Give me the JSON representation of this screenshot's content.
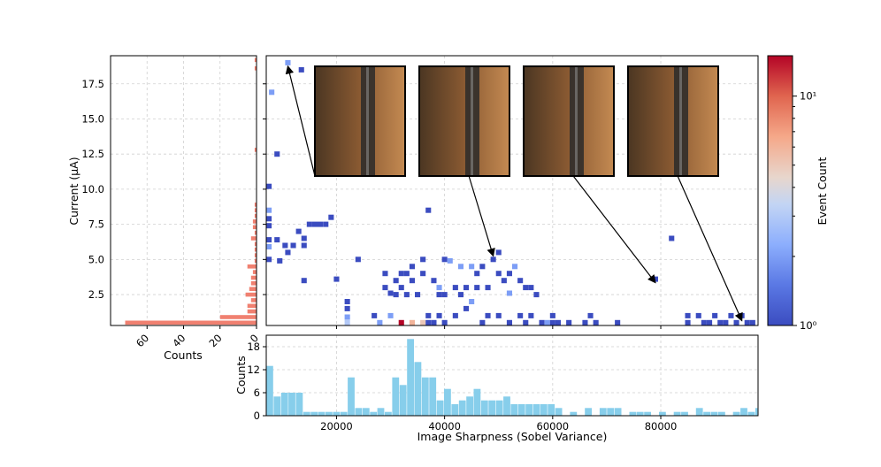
{
  "colors": {
    "heat_low": "#3b4cc0",
    "heat_mid": "#dddddd",
    "heat_high": "#b40426",
    "top_hist": "#87ceeb",
    "side_hist": "#f08070",
    "grid": "#d0d0d0"
  },
  "chart_data": [
    {
      "type": "heatmap",
      "name": "main-heatmap",
      "title": "",
      "xlabel": "",
      "ylabel": "Current (µA)",
      "x_range": [
        7000,
        98000
      ],
      "y_range": [
        0.3,
        19.5
      ],
      "y_ticks": [
        "2.5",
        "5.0",
        "7.5",
        "10.0",
        "12.5",
        "15.0",
        "17.5"
      ],
      "y_tick_values": [
        2.5,
        5.0,
        7.5,
        10.0,
        12.5,
        15.0,
        17.5
      ],
      "grid": true,
      "color_scale": "log",
      "cells": [
        [
          11000,
          19.0,
          2
        ],
        [
          13500,
          18.5,
          1
        ],
        [
          8000,
          16.9,
          2
        ],
        [
          9000,
          12.5,
          1
        ],
        [
          7500,
          10.2,
          1
        ],
        [
          7500,
          8.5,
          2
        ],
        [
          7500,
          7.9,
          1
        ],
        [
          7500,
          7.4,
          1
        ],
        [
          7500,
          6.4,
          1
        ],
        [
          7500,
          5.9,
          2
        ],
        [
          7500,
          5.0,
          1
        ],
        [
          9000,
          6.4,
          1
        ],
        [
          9500,
          4.9,
          1
        ],
        [
          10500,
          6.0,
          1
        ],
        [
          11000,
          5.5,
          1
        ],
        [
          12000,
          6.0,
          1
        ],
        [
          13000,
          7.0,
          1
        ],
        [
          14000,
          6.5,
          1
        ],
        [
          14000,
          6.0,
          1
        ],
        [
          14000,
          3.5,
          1
        ],
        [
          15000,
          7.5,
          1
        ],
        [
          16000,
          7.5,
          1
        ],
        [
          17000,
          7.5,
          1
        ],
        [
          18000,
          7.5,
          1
        ],
        [
          19000,
          8.0,
          1
        ],
        [
          20000,
          3.6,
          1
        ],
        [
          22000,
          2.0,
          1
        ],
        [
          22000,
          1.5,
          1
        ],
        [
          22000,
          0.9,
          2
        ],
        [
          22000,
          0.5,
          3
        ],
        [
          24000,
          5.0,
          1
        ],
        [
          27000,
          1.0,
          1
        ],
        [
          28000,
          0.5,
          2
        ],
        [
          29000,
          4.0,
          1
        ],
        [
          29000,
          3.0,
          1
        ],
        [
          30000,
          2.6,
          1
        ],
        [
          30000,
          1.0,
          2
        ],
        [
          31000,
          3.5,
          1
        ],
        [
          31000,
          2.5,
          1
        ],
        [
          32000,
          4.0,
          1
        ],
        [
          32000,
          3.0,
          1
        ],
        [
          32000,
          0.5,
          15
        ],
        [
          33000,
          4.0,
          1
        ],
        [
          33000,
          2.5,
          1
        ],
        [
          34000,
          4.5,
          1
        ],
        [
          34000,
          3.5,
          1
        ],
        [
          34000,
          0.5,
          6
        ],
        [
          35000,
          2.5,
          1
        ],
        [
          36000,
          5.0,
          1
        ],
        [
          36000,
          4.0,
          1
        ],
        [
          36000,
          0.5,
          5
        ],
        [
          37000,
          8.5,
          1
        ],
        [
          37000,
          1.0,
          1
        ],
        [
          37000,
          0.5,
          1
        ],
        [
          38000,
          3.5,
          1
        ],
        [
          38000,
          0.5,
          1
        ],
        [
          39000,
          3.0,
          2
        ],
        [
          39000,
          2.5,
          1
        ],
        [
          39000,
          1.0,
          1
        ],
        [
          40000,
          5.0,
          1
        ],
        [
          40000,
          2.5,
          1
        ],
        [
          40000,
          0.5,
          1
        ],
        [
          41000,
          4.9,
          2
        ],
        [
          42000,
          3.0,
          1
        ],
        [
          42000,
          1.0,
          1
        ],
        [
          43000,
          4.5,
          2
        ],
        [
          43000,
          2.5,
          1
        ],
        [
          44000,
          3.0,
          1
        ],
        [
          44000,
          1.5,
          1
        ],
        [
          45000,
          4.5,
          2
        ],
        [
          45000,
          2.0,
          2
        ],
        [
          46000,
          4.0,
          1
        ],
        [
          46000,
          3.0,
          1
        ],
        [
          47000,
          4.5,
          1
        ],
        [
          47000,
          0.5,
          1
        ],
        [
          48000,
          3.0,
          1
        ],
        [
          48000,
          1.0,
          1
        ],
        [
          49000,
          5.0,
          1
        ],
        [
          50000,
          5.5,
          1
        ],
        [
          50000,
          4.0,
          1
        ],
        [
          50000,
          1.0,
          1
        ],
        [
          51000,
          3.5,
          1
        ],
        [
          52000,
          4.0,
          1
        ],
        [
          52000,
          2.6,
          2
        ],
        [
          52000,
          0.5,
          1
        ],
        [
          53000,
          4.5,
          2
        ],
        [
          54000,
          3.5,
          1
        ],
        [
          54000,
          1.0,
          1
        ],
        [
          55000,
          3.0,
          1
        ],
        [
          55000,
          0.5,
          1
        ],
        [
          56000,
          3.0,
          1
        ],
        [
          56000,
          1.0,
          1
        ],
        [
          57000,
          2.5,
          1
        ],
        [
          58000,
          0.5,
          1
        ],
        [
          59000,
          0.5,
          2
        ],
        [
          60000,
          1.0,
          1
        ],
        [
          60000,
          0.5,
          1
        ],
        [
          61000,
          0.5,
          1
        ],
        [
          63000,
          0.5,
          1
        ],
        [
          66000,
          0.5,
          1
        ],
        [
          67000,
          1.0,
          1
        ],
        [
          68000,
          0.5,
          1
        ],
        [
          72000,
          0.5,
          1
        ],
        [
          79000,
          3.6,
          1
        ],
        [
          82000,
          6.5,
          1
        ],
        [
          85000,
          1.0,
          1
        ],
        [
          85000,
          0.5,
          1
        ],
        [
          87000,
          1.0,
          1
        ],
        [
          88000,
          0.5,
          1
        ],
        [
          89000,
          0.5,
          1
        ],
        [
          90000,
          1.0,
          1
        ],
        [
          91000,
          0.5,
          1
        ],
        [
          92000,
          0.5,
          1
        ],
        [
          93000,
          1.0,
          1
        ],
        [
          94000,
          0.5,
          1
        ],
        [
          95000,
          1.0,
          1
        ],
        [
          96000,
          0.5,
          1
        ],
        [
          97000,
          0.5,
          1
        ]
      ],
      "annotations": [
        {
          "target": [
            11000,
            19.0
          ],
          "inset": 0
        },
        {
          "target": [
            49000,
            5.5
          ],
          "inset": 1
        },
        {
          "target": [
            79000,
            3.6
          ],
          "inset": 2
        },
        {
          "target": [
            95000,
            0.9
          ],
          "inset": 3
        }
      ]
    },
    {
      "type": "bar",
      "name": "top-histogram",
      "title": "",
      "xlabel": "Image Sharpness (Sobel Variance)",
      "ylabel": "Counts",
      "x_range": [
        7000,
        98000
      ],
      "ylim": [
        0,
        21
      ],
      "x_ticks": [
        "20000",
        "40000",
        "60000",
        "80000"
      ],
      "x_tick_values": [
        20000,
        40000,
        60000,
        80000
      ],
      "y_ticks": [
        "0",
        "6",
        "12",
        "18"
      ],
      "y_tick_values": [
        0,
        6,
        12,
        18
      ],
      "grid": true,
      "bin_width": 1371,
      "bin_start": 7000,
      "values": [
        13,
        5,
        6,
        6,
        6,
        1,
        1,
        1,
        1,
        1,
        1,
        10,
        2,
        2,
        1,
        2,
        1,
        10,
        8,
        20,
        14,
        10,
        10,
        4,
        7,
        3,
        4,
        5,
        7,
        4,
        4,
        4,
        5,
        3,
        3,
        3,
        3,
        3,
        3,
        2,
        0,
        1,
        0,
        2,
        0,
        2,
        2,
        2,
        0,
        1,
        1,
        1,
        0,
        1,
        0,
        1,
        1,
        0,
        2,
        1,
        1,
        1,
        0,
        1,
        2,
        1,
        2,
        0,
        1,
        0,
        1,
        1,
        0,
        0,
        0,
        1,
        2,
        2,
        0,
        1,
        1,
        1,
        1,
        2,
        3,
        2,
        0,
        0,
        0,
        2
      ]
    },
    {
      "type": "bar",
      "orientation": "horizontal",
      "name": "side-histogram",
      "title": "",
      "xlabel": "Counts",
      "ylabel": "",
      "xlim": [
        0,
        80
      ],
      "x_ticks": [
        "0",
        "20",
        "40",
        "60"
      ],
      "x_tick_values": [
        0,
        20,
        40,
        60
      ],
      "grid": true,
      "bins": [
        [
          0.5,
          72
        ],
        [
          0.9,
          20
        ],
        [
          1.3,
          5
        ],
        [
          1.7,
          5
        ],
        [
          2.1,
          3
        ],
        [
          2.5,
          6
        ],
        [
          2.9,
          4
        ],
        [
          3.3,
          3
        ],
        [
          3.7,
          3
        ],
        [
          4.1,
          2
        ],
        [
          4.5,
          5
        ],
        [
          4.9,
          1
        ],
        [
          5.3,
          1
        ],
        [
          5.7,
          1
        ],
        [
          6.1,
          1
        ],
        [
          6.5,
          3
        ],
        [
          6.9,
          1
        ],
        [
          7.3,
          2
        ],
        [
          7.7,
          2
        ],
        [
          8.1,
          1
        ],
        [
          8.5,
          1
        ],
        [
          8.9,
          1
        ],
        [
          12.8,
          1
        ],
        [
          18.6,
          1
        ],
        [
          19.2,
          1
        ]
      ]
    },
    {
      "type": "colorbar",
      "name": "event-count-colorbar",
      "label": "Event Count",
      "scale": "log",
      "range": [
        1,
        15
      ],
      "tick_labels": [
        "10⁰",
        "10¹"
      ],
      "tick_values": [
        1,
        10
      ]
    }
  ]
}
